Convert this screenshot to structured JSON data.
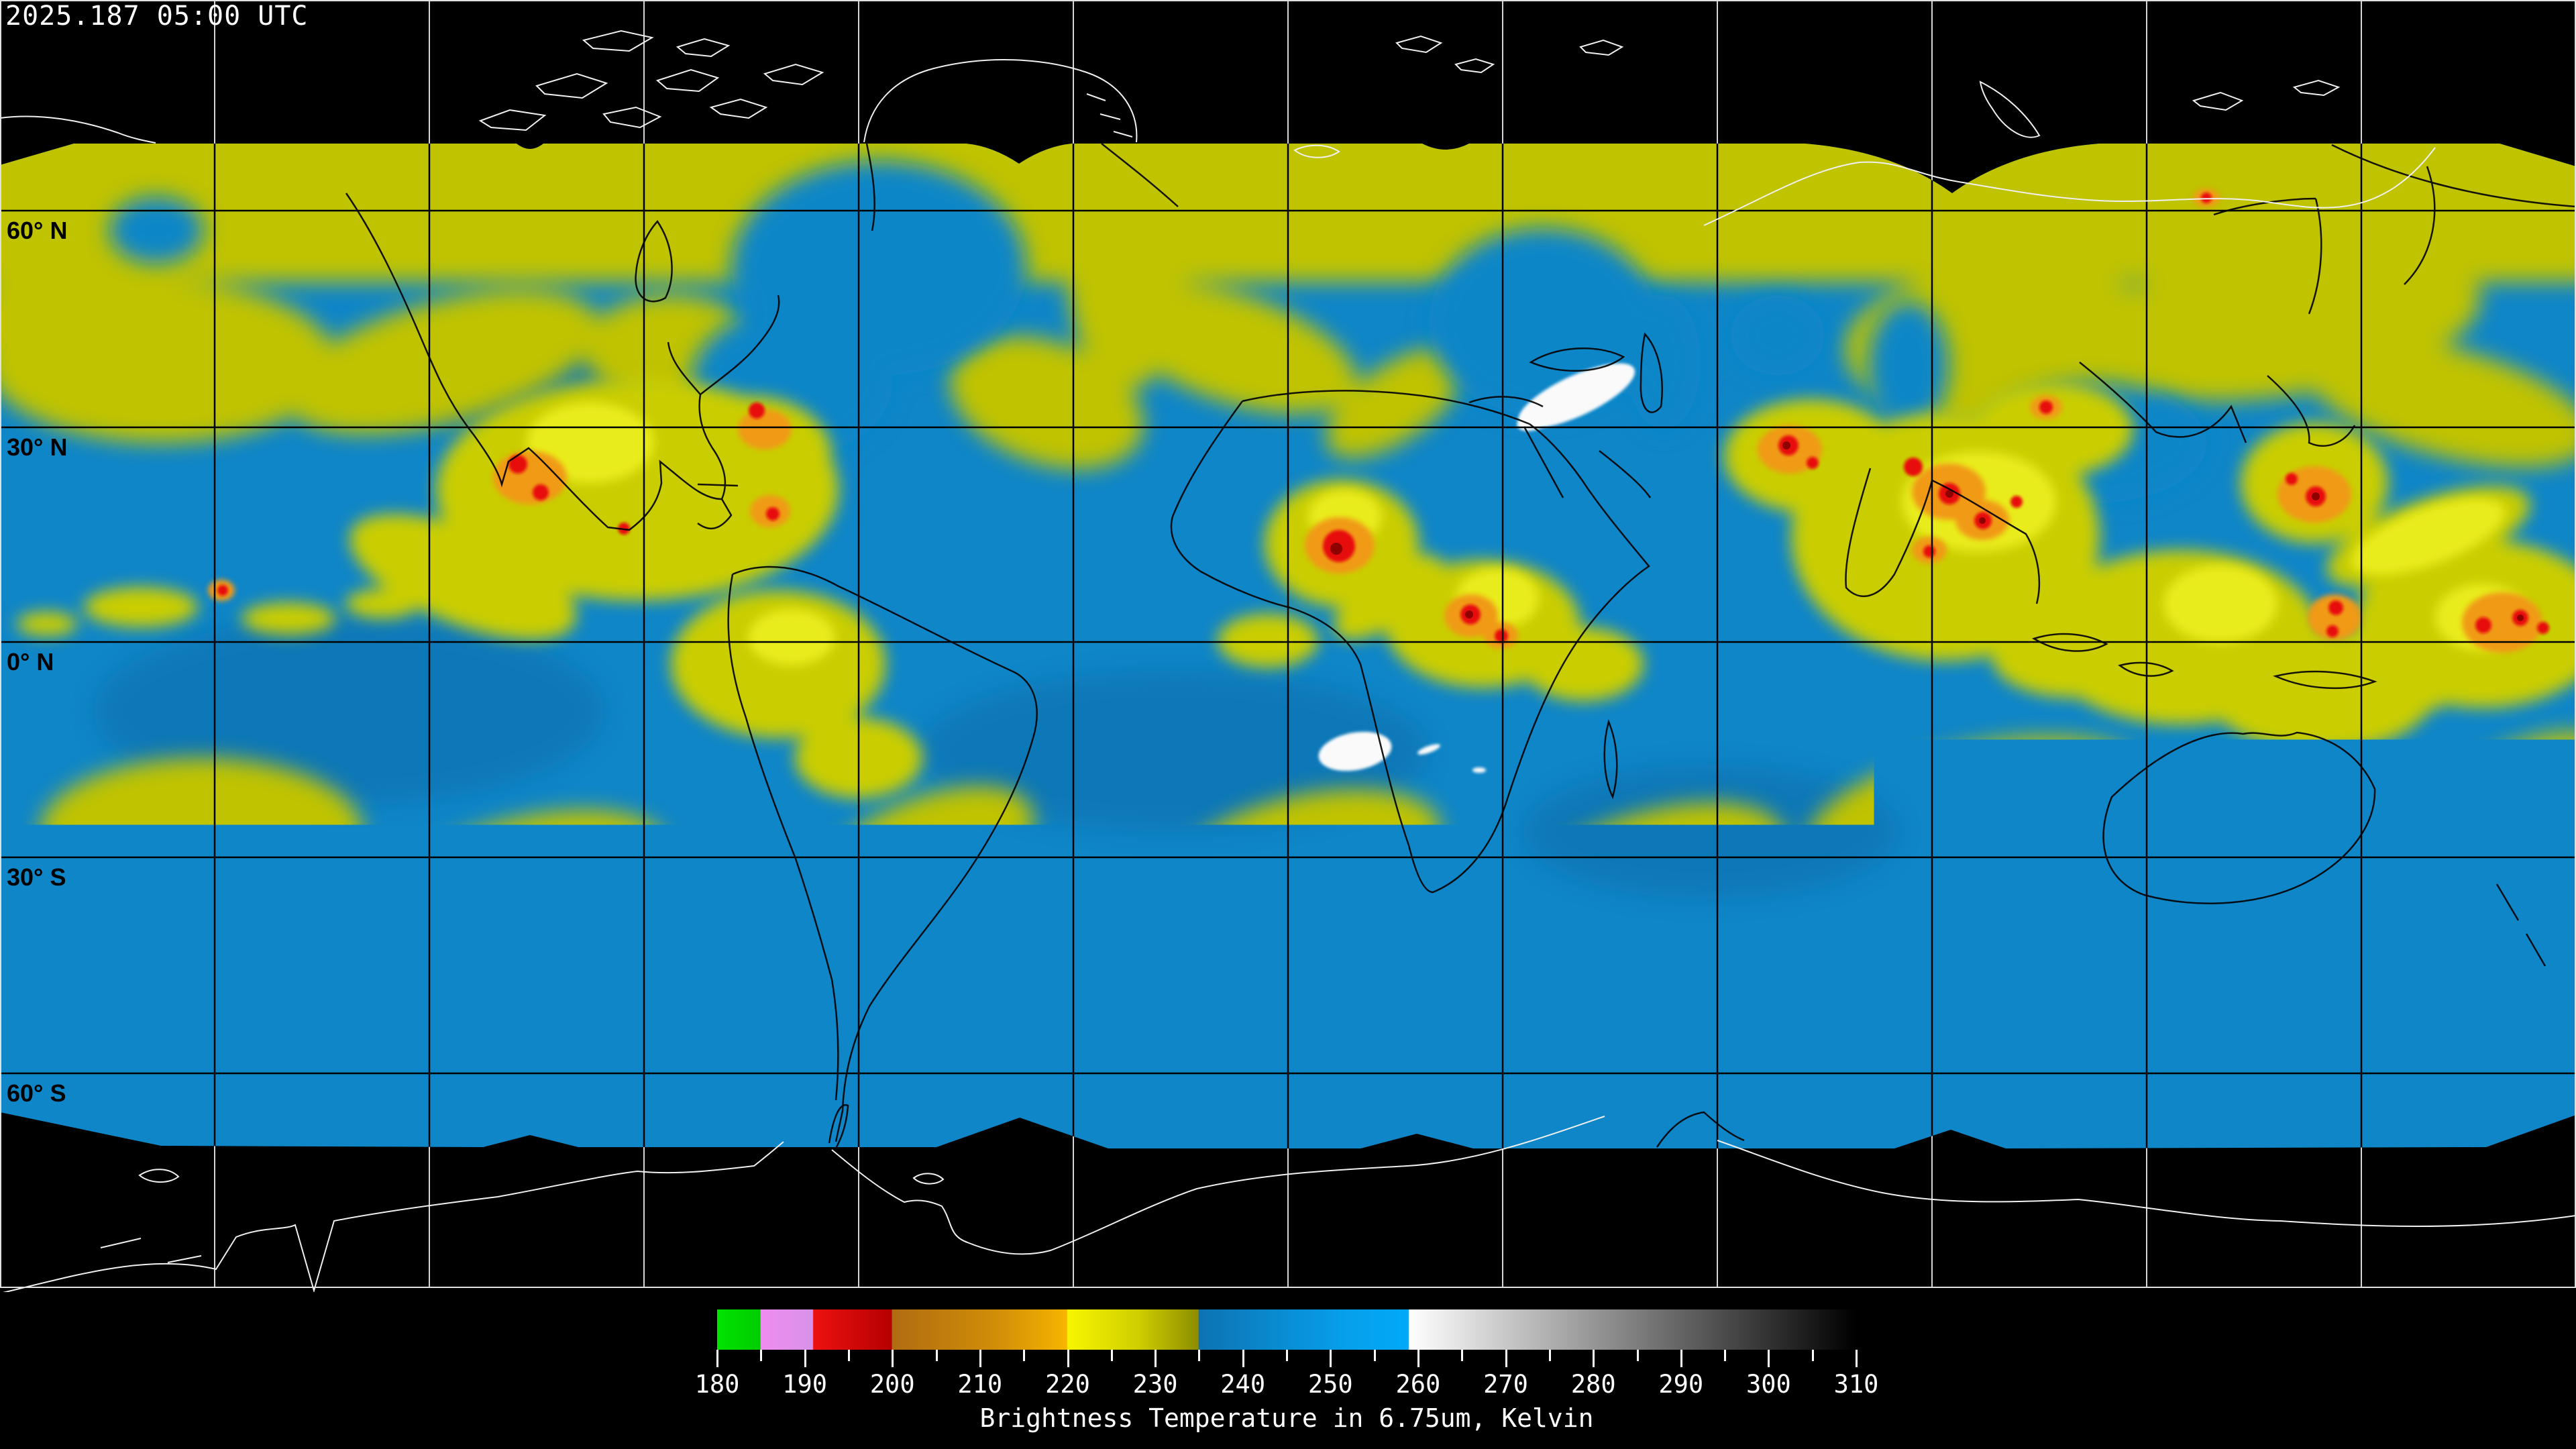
{
  "header": {
    "timestamp": "2025.187 05:00 UTC"
  },
  "map": {
    "latitude_labels": [
      {
        "text": "60° N"
      },
      {
        "text": "30° N"
      },
      {
        "text": "0° N"
      },
      {
        "text": "30° S"
      },
      {
        "text": "60° S"
      }
    ],
    "graticule": {
      "latitude_lines_deg": [
        60,
        30,
        0,
        -30,
        -60
      ],
      "longitude_spacing_deg": 30
    }
  },
  "colorbar": {
    "caption": "Brightness Temperature in 6.75um, Kelvin",
    "min": 180,
    "max": 310,
    "major_ticks": [
      180,
      190,
      200,
      210,
      220,
      230,
      240,
      250,
      260,
      270,
      280,
      290,
      300,
      310
    ],
    "minor_ticks": [
      185,
      195,
      205,
      215,
      225,
      235,
      245,
      255,
      265,
      275,
      285,
      295,
      305
    ],
    "stops": [
      {
        "value": 180,
        "color": "#00e400"
      },
      {
        "value": 184.9,
        "color": "#00cc00"
      },
      {
        "value": 185,
        "color": "#f08cf0"
      },
      {
        "value": 190.9,
        "color": "#d892e8"
      },
      {
        "value": 191,
        "color": "#ee1111"
      },
      {
        "value": 199.9,
        "color": "#b50000"
      },
      {
        "value": 200,
        "color": "#b06c12"
      },
      {
        "value": 212,
        "color": "#d18e08"
      },
      {
        "value": 219.9,
        "color": "#f7b400"
      },
      {
        "value": 220,
        "color": "#f8f500"
      },
      {
        "value": 228,
        "color": "#cfcf00"
      },
      {
        "value": 234.9,
        "color": "#8d8d00"
      },
      {
        "value": 235,
        "color": "#0d73b2"
      },
      {
        "value": 252,
        "color": "#06a0ec"
      },
      {
        "value": 258.9,
        "color": "#00a9f7"
      },
      {
        "value": 259,
        "color": "#ffffff"
      },
      {
        "value": 310,
        "color": "#000000"
      }
    ]
  },
  "colors": {
    "background": "#000000",
    "ocean": "#0f86c8",
    "cloud_yellow": "#bfc300",
    "cloud_bright": "#e9ec1e",
    "cloud_orange": "#f09a18",
    "cloud_red": "#e81010",
    "cloud_dark_red": "#8f0000",
    "cloud_white": "#fafafa",
    "polar_orange": "#e8930e",
    "coastline_dark": "#000000",
    "coastline_light": "#f0f0f0",
    "graticule_light": "#d8d8d8",
    "graticule_dark": "#000000",
    "label_text": "#ffffff"
  }
}
